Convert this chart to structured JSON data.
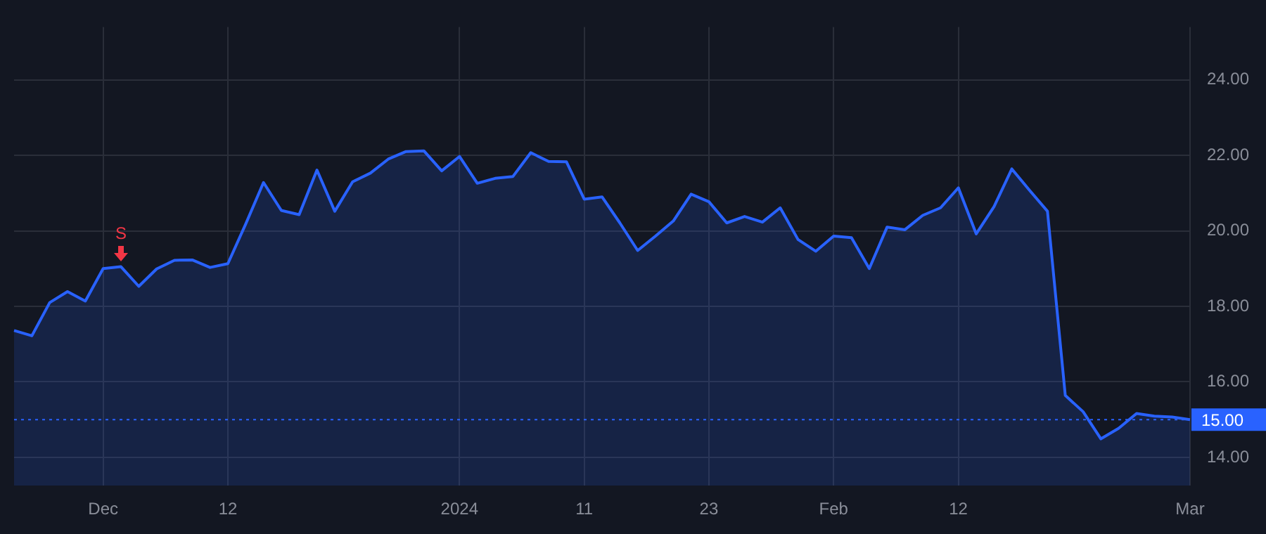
{
  "chart_data": {
    "type": "area",
    "categories": [
      null,
      null,
      null,
      null,
      null,
      "Dec",
      null,
      null,
      null,
      null,
      null,
      null,
      "12",
      null,
      null,
      null,
      null,
      null,
      null,
      null,
      null,
      null,
      null,
      null,
      null,
      "2024",
      null,
      null,
      null,
      null,
      null,
      null,
      "11",
      null,
      null,
      null,
      null,
      null,
      null,
      "23",
      null,
      null,
      null,
      null,
      null,
      null,
      "Feb",
      null,
      null,
      null,
      null,
      null,
      null,
      "12",
      null,
      null,
      null,
      null,
      null,
      null,
      null,
      null,
      null,
      null,
      null,
      null,
      "Mar"
    ],
    "values": [
      17.36,
      17.22,
      18.1,
      18.39,
      18.14,
      19.0,
      19.05,
      18.53,
      18.99,
      19.22,
      19.23,
      19.03,
      19.13,
      20.18,
      21.28,
      20.54,
      20.43,
      21.61,
      20.52,
      21.3,
      21.53,
      21.9,
      22.1,
      22.12,
      21.59,
      21.97,
      21.26,
      21.39,
      21.44,
      22.07,
      21.84,
      21.83,
      20.84,
      20.9,
      20.21,
      19.48,
      19.86,
      20.26,
      20.97,
      20.77,
      20.21,
      20.38,
      20.23,
      20.61,
      19.77,
      19.46,
      19.86,
      19.82,
      19.0,
      20.1,
      20.03,
      20.41,
      20.61,
      21.14,
      19.92,
      20.64,
      21.64,
      21.07,
      20.52,
      15.64,
      15.21,
      14.49,
      14.77,
      15.16,
      15.09,
      15.07,
      15.0
    ],
    "color": "#2962ff",
    "ylim": [
      13.25,
      25.4
    ],
    "yticks": [
      {
        "value": 14,
        "label": "14.00"
      },
      {
        "value": 16,
        "label": "16.00"
      },
      {
        "value": 18,
        "label": "18.00"
      },
      {
        "value": 20,
        "label": "20.00"
      },
      {
        "value": 22,
        "label": "22.00"
      },
      {
        "value": 24,
        "label": "24.00"
      }
    ],
    "grid": true,
    "legend": false,
    "ref_lines": [
      {
        "axis": "y",
        "value": 15,
        "label": "15.00",
        "color": "#2962ff",
        "line_style": "dotted"
      }
    ],
    "annotations": [
      {
        "text": "S",
        "y": 19.05
      }
    ]
  }
}
